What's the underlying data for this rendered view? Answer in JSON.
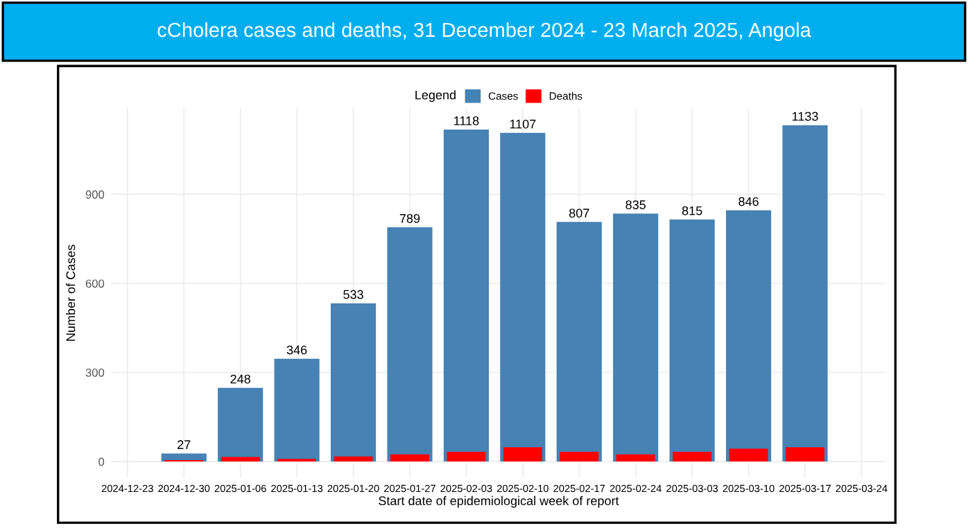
{
  "chart_data": {
    "type": "bar",
    "title": "cCholera cases and deaths, 31 December 2024 - 23 March 2025, Angola",
    "xlabel": "Start date of epidemiological week of report",
    "ylabel": "Number of Cases",
    "legend_title": "Legend",
    "legend": "top",
    "x": [
      "2024-12-30",
      "2025-01-06",
      "2025-01-13",
      "2025-01-20",
      "2025-01-27",
      "2025-02-03",
      "2025-02-10",
      "2025-02-17",
      "2025-02-24",
      "2025-03-03",
      "2025-03-10",
      "2025-03-17"
    ],
    "series": [
      {
        "name": "Cases",
        "color": "#4682b4",
        "values": [
          27,
          248,
          346,
          533,
          789,
          1118,
          1107,
          807,
          835,
          815,
          846,
          1133
        ],
        "value_labels": [
          "27",
          "248",
          "346",
          "533",
          "789",
          "1118",
          "1107",
          "807",
          "835",
          "815",
          "846",
          "1133"
        ]
      },
      {
        "name": "Deaths",
        "color": "#ff0000",
        "values": [
          5,
          15,
          9,
          17,
          24,
          33,
          48,
          33,
          24,
          33,
          43,
          48
        ]
      }
    ],
    "xlim": [
      "2024-12-21",
      "2025-03-27"
    ],
    "xticks": [
      "2024-12-23",
      "2024-12-30",
      "2025-01-06",
      "2025-01-13",
      "2025-01-20",
      "2025-01-27",
      "2025-02-03",
      "2025-02-10",
      "2025-02-17",
      "2025-02-24",
      "2025-03-03",
      "2025-03-10",
      "2025-03-17",
      "2025-03-24"
    ],
    "ylim": [
      -55,
      1190
    ],
    "yticks": [
      0,
      300,
      600,
      900
    ],
    "grid": true
  }
}
